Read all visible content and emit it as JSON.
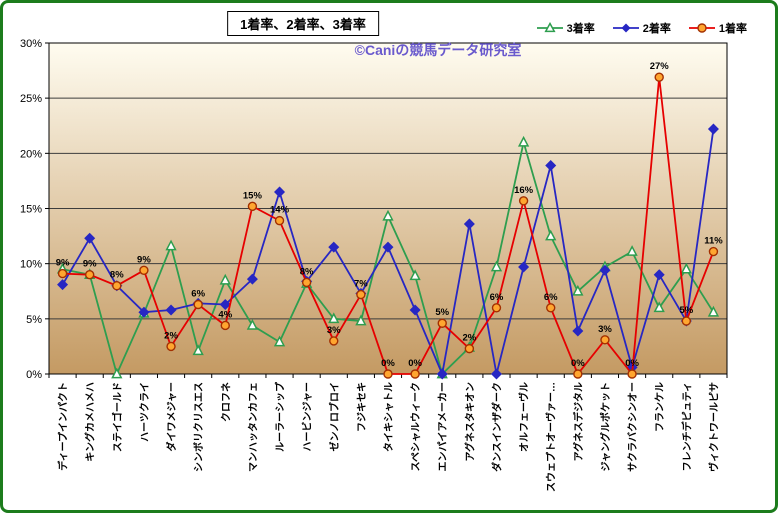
{
  "title": "1着率、2着率、3着率",
  "watermark": "©Caniの競馬データ研究室",
  "colors": {
    "frame_border": "#1c7c1c",
    "watermark": "#6a5acd",
    "plot_bg_top": "#fffcf0",
    "plot_bg_bottom": "#c49a63",
    "gridline": "#3c3c3c"
  },
  "chart_data": {
    "type": "line",
    "title": "1着率、2着率、3着率",
    "legend_position": "top-right",
    "grid": true,
    "ylim": [
      0,
      30
    ],
    "yticks": [
      "0%",
      "5%",
      "10%",
      "15%",
      "20%",
      "25%",
      "30%"
    ],
    "categories": [
      "ディープインパクト",
      "キングカメハメハ",
      "ステイゴールド",
      "ハーツクライ",
      "ダイワメジャー",
      "シンボリクリスエス",
      "クロフネ",
      "マンハッタンカフェ",
      "ルーラーシップ",
      "ハービンジャー",
      "ゼンノロブロイ",
      "フジキセキ",
      "タイキシャトル",
      "スペシャルウィーク",
      "エンパイアメーカー",
      "アグネスタキオン",
      "ダンスインザダーク",
      "オルフェーヴル",
      "スウェプトオーヴァー…",
      "アグネスデジタル",
      "ジャングルポケット",
      "サクラバクシンオー",
      "フランケル",
      "フレンチデピュティ",
      "ヴィクトワールピサ"
    ],
    "series": [
      {
        "id": "rank3",
        "name": "3着率",
        "marker": "triangle",
        "line_color": "#2e9e4f",
        "marker_color": "#2e9e4f",
        "values": [
          9.5,
          9.0,
          0.0,
          5.5,
          11.6,
          2.1,
          8.5,
          4.4,
          2.9,
          8.2,
          5.0,
          4.8,
          14.3,
          8.9,
          0.0,
          2.4,
          9.7,
          21.0,
          12.5,
          7.5,
          9.7,
          11.1,
          6.0,
          9.5,
          5.6
        ]
      },
      {
        "id": "rank2",
        "name": "2着率",
        "marker": "diamond",
        "line_color": "#2727c3",
        "marker_color": "#2727c3",
        "values": [
          8.1,
          12.3,
          8.0,
          5.6,
          5.8,
          6.4,
          6.3,
          8.6,
          16.5,
          8.4,
          11.5,
          7.3,
          11.5,
          5.8,
          0.0,
          13.6,
          0.0,
          9.7,
          18.9,
          3.9,
          9.4,
          0.6,
          9.0,
          4.8,
          22.2
        ]
      },
      {
        "id": "rank1",
        "name": "1着率",
        "marker": "circle",
        "line_color": "#e60000",
        "marker_fill": "#ffa630",
        "marker_edge": "#a33000",
        "values": [
          9.1,
          9.0,
          8.0,
          9.4,
          2.5,
          6.3,
          4.4,
          15.2,
          13.9,
          8.3,
          3.0,
          7.2,
          0.0,
          0.0,
          4.6,
          2.3,
          6.0,
          15.7,
          6.0,
          0.0,
          3.1,
          0.0,
          26.9,
          4.8,
          11.1
        ],
        "labels": [
          "9%",
          "9%",
          "8%",
          "9%",
          "2%",
          "6%",
          "4%",
          "15%",
          "14%",
          "8%",
          "3%",
          "7%",
          "0%",
          "0%",
          "5%",
          "2%",
          "6%",
          "16%",
          "6%",
          "0%",
          "3%",
          "0%",
          "27%",
          "5%",
          "11%"
        ]
      }
    ]
  }
}
